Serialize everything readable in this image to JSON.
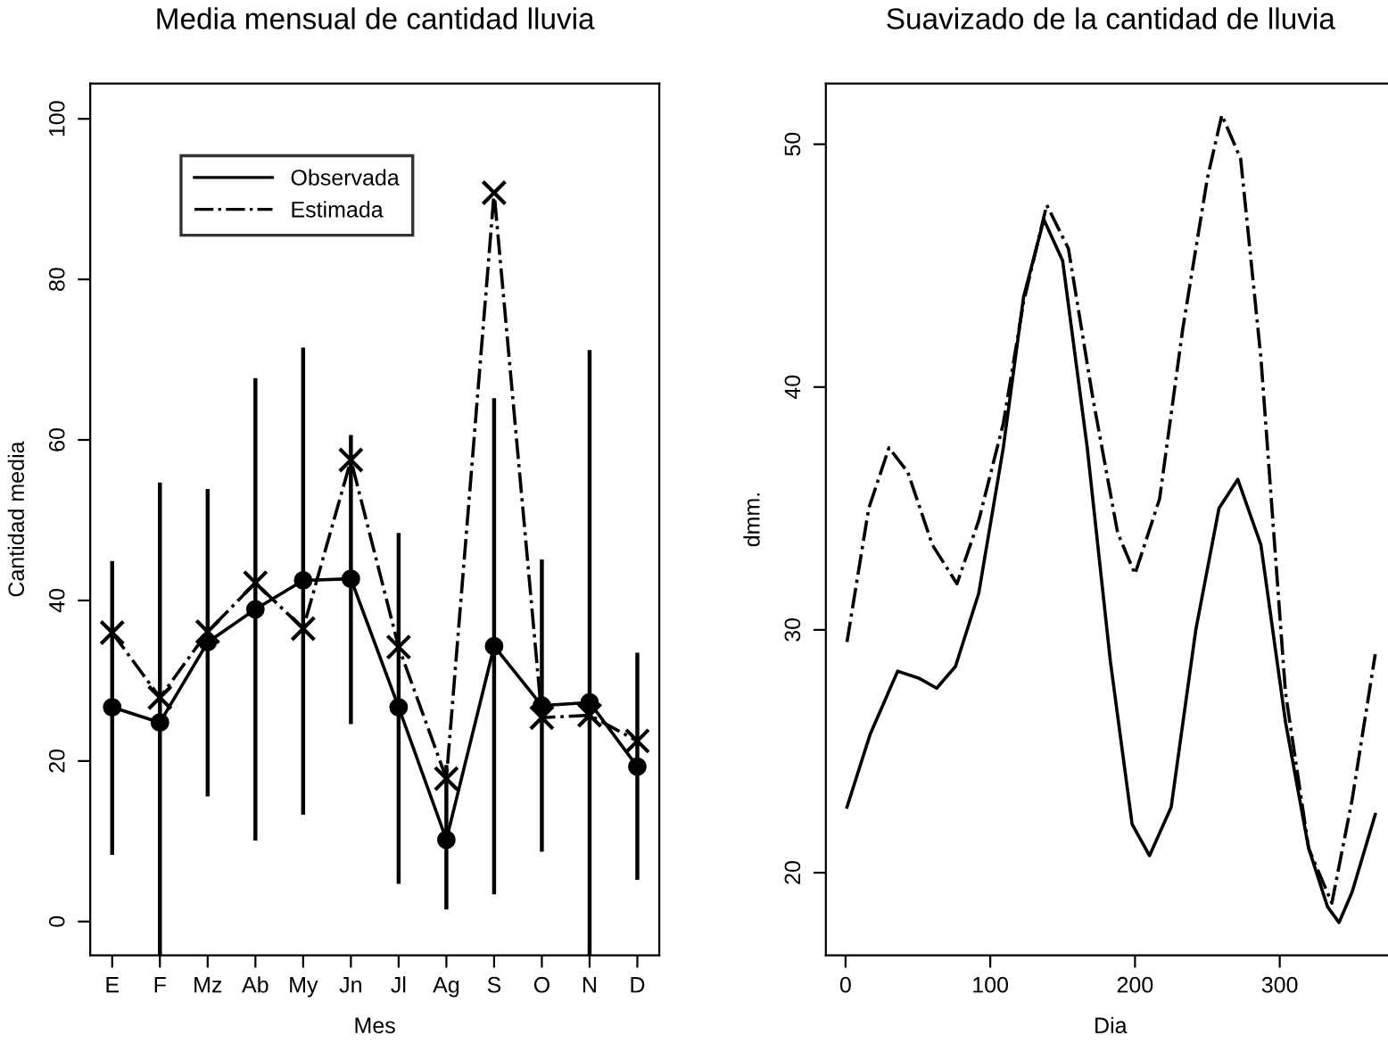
{
  "chart_data": [
    {
      "type": "line",
      "title": "Media mensual de cantidad lluvia",
      "xlabel": "Mes",
      "ylabel": "Cantidad media",
      "categories": [
        "E",
        "F",
        "Mz",
        "Ab",
        "My",
        "Jn",
        "Jl",
        "Ag",
        "S",
        "O",
        "N",
        "D"
      ],
      "ylim": [
        -4.2,
        104.4
      ],
      "yticks": [
        0,
        20,
        40,
        60,
        80,
        100
      ],
      "grid": false,
      "legend": "top left",
      "series": [
        {
          "name": "Observada",
          "color": "#000000",
          "line_style": "solid",
          "marker": "circle",
          "values": [
            26.7,
            24.8,
            34.8,
            38.9,
            42.5,
            42.7,
            26.7,
            10.2,
            34.3,
            26.9,
            27.3,
            19.3
          ],
          "errors": [
            [
              8.3,
              44.9
            ],
            [
              -4.2,
              54.7
            ],
            [
              15.6,
              53.9
            ],
            [
              10.1,
              67.7
            ],
            [
              13.3,
              71.5
            ],
            [
              24.6,
              60.6
            ],
            [
              4.7,
              48.4
            ],
            [
              1.5,
              19.5
            ],
            [
              3.4,
              65.2
            ],
            [
              8.7,
              45.1
            ],
            [
              -4.2,
              71.2
            ],
            [
              5.2,
              33.5
            ]
          ]
        },
        {
          "name": "Estimada",
          "color": "#000000",
          "line_style": "dashdot",
          "marker": "cross",
          "values": [
            36.0,
            27.9,
            36.1,
            42.2,
            36.5,
            57.5,
            34.2,
            17.8,
            90.8,
            25.4,
            25.7,
            22.5
          ]
        }
      ]
    },
    {
      "type": "line",
      "title": "Suavizado de la cantidad de lluvia",
      "xlabel": "Dia",
      "ylabel": "dmm.",
      "xlim": [
        -13.6,
        379.6
      ],
      "xticks": [
        0,
        100,
        200,
        300
      ],
      "ylim": [
        16.6,
        52.5
      ],
      "yticks": [
        20,
        30,
        40,
        50
      ],
      "grid": false,
      "legend": false,
      "series": [
        {
          "color": "#000000",
          "line_style": "solid",
          "x": [
            1,
            17,
            36,
            51,
            63,
            76,
            92,
            109,
            123,
            137,
            150,
            167,
            183,
            198,
            210,
            225,
            242,
            258,
            271,
            287,
            304,
            320,
            333,
            341,
            350,
            366
          ],
          "values": [
            22.7,
            25.7,
            28.3,
            28.0,
            27.6,
            28.5,
            31.5,
            37.5,
            43.7,
            46.9,
            45.2,
            37.5,
            28.7,
            22.0,
            20.7,
            22.7,
            30.0,
            35.0,
            36.2,
            33.5,
            26.2,
            21.0,
            18.6,
            17.95,
            19.2,
            22.4
          ]
        },
        {
          "color": "#000000",
          "line_style": "dashdot",
          "x": [
            1,
            16,
            30,
            43,
            60,
            77,
            92,
            109,
            123,
            139,
            154,
            171,
            188,
            200,
            217,
            233,
            250,
            260,
            273,
            287,
            304,
            320,
            336,
            350,
            366
          ],
          "values": [
            29.5,
            35.0,
            37.5,
            36.5,
            33.5,
            31.9,
            34.5,
            38.5,
            43.5,
            47.5,
            45.7,
            39.5,
            34.0,
            32.3,
            35.4,
            42.4,
            48.6,
            51.2,
            49.4,
            41.2,
            27.4,
            21.0,
            18.75,
            23.0,
            29.0
          ]
        }
      ]
    }
  ]
}
